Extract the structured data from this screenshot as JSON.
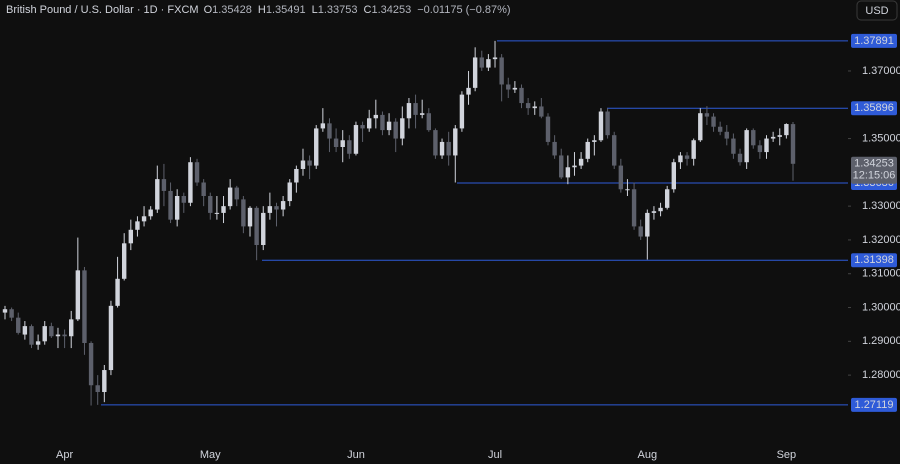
{
  "chart_data": {
    "type": "candlestick",
    "title": "British Pound / U.S. Dollar · 1D · FXCM",
    "legend": [
      {
        "key": "O",
        "value": "1.35428"
      },
      {
        "key": "H",
        "value": "1.35491"
      },
      {
        "key": "L",
        "value": "1.33753"
      },
      {
        "key": "C",
        "value": "1.34253"
      }
    ],
    "change": "−0.01175 (−0.87%)",
    "currency": "USD",
    "categories": [
      null,
      null,
      null,
      null,
      null,
      null,
      null,
      null,
      null,
      "Apr",
      null,
      null,
      null,
      null,
      null,
      null,
      null,
      null,
      null,
      null,
      null,
      null,
      null,
      null,
      null,
      null,
      null,
      null,
      null,
      null,
      null,
      "May",
      null,
      null,
      null,
      null,
      null,
      null,
      null,
      null,
      null,
      null,
      null,
      null,
      null,
      null,
      null,
      null,
      null,
      null,
      null,
      null,
      null,
      "Jun",
      null,
      null,
      null,
      null,
      null,
      null,
      null,
      null,
      null,
      null,
      null,
      null,
      null,
      null,
      null,
      null,
      null,
      null,
      null,
      null,
      "Jul",
      null,
      null,
      null,
      null,
      null,
      null,
      null,
      null,
      null,
      null,
      null,
      null,
      null,
      null,
      null,
      null,
      null,
      null,
      null,
      null,
      null,
      null,
      "Aug",
      null,
      null,
      null,
      null,
      null,
      null,
      null,
      null,
      null,
      null,
      null,
      null,
      null,
      null,
      null,
      null,
      null,
      null,
      null,
      null,
      "Sep",
      null
    ],
    "open": [
      1.2985,
      1.2995,
      1.297,
      1.292,
      1.2945,
      1.289,
      1.29,
      1.2945,
      1.2915,
      1.292,
      1.2915,
      1.2965,
      1.311,
      1.2895,
      1.277,
      1.275,
      1.2815,
      1.3005,
      1.3085,
      1.319,
      1.323,
      1.3255,
      1.327,
      1.329,
      1.338,
      1.3345,
      1.326,
      1.333,
      1.331,
      1.343,
      1.337,
      1.333,
      1.328,
      1.328,
      1.33,
      1.3355,
      1.332,
      1.324,
      1.3295,
      1.3185,
      1.328,
      1.33,
      1.329,
      1.3315,
      1.337,
      1.341,
      1.3435,
      1.342,
      1.353,
      1.3545,
      1.35,
      1.3475,
      1.3495,
      1.3455,
      1.354,
      1.353,
      1.356,
      1.357,
      1.3525,
      1.355,
      1.35,
      1.356,
      1.3605,
      1.357,
      1.3575,
      1.3525,
      1.345,
      1.349,
      1.345,
      1.353,
      1.363,
      1.365,
      1.374,
      1.371,
      1.3735,
      1.374,
      1.366,
      1.3645,
      1.365,
      1.3605,
      1.359,
      1.3595,
      1.3565,
      1.349,
      1.345,
      1.3385,
      1.3415,
      1.342,
      1.344,
      1.349,
      1.3495,
      1.358,
      1.351,
      1.342,
      1.335,
      1.335,
      1.324,
      1.321,
      1.328,
      1.3285,
      1.3295,
      1.335,
      1.343,
      1.345,
      1.344,
      1.3495,
      1.3575,
      1.3565,
      1.3535,
      1.352,
      1.35,
      1.3455,
      1.343,
      1.3525,
      1.348,
      1.346,
      1.35,
      1.3505,
      1.351,
      1.35428
    ],
    "high": [
      1.3005,
      1.3,
      1.2985,
      1.296,
      1.295,
      1.292,
      1.296,
      1.2955,
      1.294,
      1.2935,
      1.299,
      1.3207,
      1.312,
      1.29,
      1.28,
      1.283,
      1.302,
      1.315,
      1.322,
      1.326,
      1.327,
      1.33,
      1.33,
      1.342,
      1.3425,
      1.337,
      1.335,
      1.334,
      1.3445,
      1.344,
      1.338,
      1.334,
      1.333,
      1.333,
      1.338,
      1.336,
      1.333,
      1.33,
      1.33,
      1.33,
      1.334,
      1.331,
      1.333,
      1.338,
      1.342,
      1.347,
      1.345,
      1.354,
      1.359,
      1.356,
      1.353,
      1.3525,
      1.351,
      1.355,
      1.355,
      1.3585,
      1.3615,
      1.358,
      1.3575,
      1.356,
      1.3595,
      1.362,
      1.363,
      1.3615,
      1.359,
      1.353,
      1.35,
      1.352,
      1.354,
      1.364,
      1.37,
      1.377,
      1.376,
      1.375,
      1.3789,
      1.375,
      1.368,
      1.367,
      1.366,
      1.362,
      1.361,
      1.362,
      1.3575,
      1.351,
      1.347,
      1.345,
      1.346,
      1.346,
      1.35,
      1.351,
      1.359,
      1.359,
      1.352,
      1.344,
      1.338,
      1.337,
      1.326,
      1.329,
      1.33,
      1.331,
      1.336,
      1.344,
      1.346,
      1.346,
      1.35,
      1.359,
      1.3596,
      1.3575,
      1.355,
      1.354,
      1.3515,
      1.347,
      1.353,
      1.353,
      1.3495,
      1.351,
      1.352,
      1.353,
      1.3545,
      1.35491
    ],
    "low": [
      1.2965,
      1.296,
      1.292,
      1.2905,
      1.288,
      1.2875,
      1.289,
      1.291,
      1.288,
      1.288,
      1.288,
      1.296,
      1.286,
      1.271,
      1.2712,
      1.272,
      1.28,
      1.3,
      1.308,
      1.317,
      1.321,
      1.324,
      1.326,
      1.328,
      1.33,
      1.325,
      1.324,
      1.328,
      1.33,
      1.336,
      1.33,
      1.326,
      1.326,
      1.325,
      1.329,
      1.33,
      1.322,
      1.321,
      1.314,
      1.317,
      1.326,
      1.324,
      1.327,
      1.33,
      1.334,
      1.339,
      1.338,
      1.341,
      1.352,
      1.346,
      1.346,
      1.343,
      1.344,
      1.345,
      1.349,
      1.352,
      1.353,
      1.351,
      1.351,
      1.346,
      1.348,
      1.353,
      1.353,
      1.356,
      1.352,
      1.344,
      1.344,
      1.342,
      1.337,
      1.352,
      1.36,
      1.364,
      1.37,
      1.37,
      1.371,
      1.361,
      1.362,
      1.3635,
      1.359,
      1.357,
      1.357,
      1.356,
      1.348,
      1.344,
      1.338,
      1.3365,
      1.339,
      1.341,
      1.343,
      1.345,
      1.349,
      1.35,
      1.341,
      1.334,
      1.333,
      1.323,
      1.32,
      1.3142,
      1.326,
      1.327,
      1.329,
      1.334,
      1.341,
      1.342,
      1.342,
      1.349,
      1.354,
      1.352,
      1.351,
      1.348,
      1.344,
      1.342,
      1.341,
      1.347,
      1.344,
      1.344,
      1.349,
      1.348,
      1.35,
      1.33753
    ],
    "close": [
      1.2995,
      1.297,
      1.2925,
      1.2945,
      1.289,
      1.29,
      1.2945,
      1.2915,
      1.292,
      1.2915,
      1.2965,
      1.311,
      1.2895,
      1.277,
      1.275,
      1.2815,
      1.3005,
      1.3085,
      1.319,
      1.323,
      1.3255,
      1.327,
      1.329,
      1.338,
      1.3345,
      1.326,
      1.333,
      1.331,
      1.343,
      1.337,
      1.333,
      1.328,
      1.328,
      1.33,
      1.3355,
      1.332,
      1.324,
      1.3295,
      1.3185,
      1.328,
      1.33,
      1.329,
      1.3315,
      1.337,
      1.341,
      1.3435,
      1.342,
      1.353,
      1.3545,
      1.35,
      1.3475,
      1.3495,
      1.3455,
      1.354,
      1.353,
      1.356,
      1.357,
      1.3525,
      1.355,
      1.35,
      1.356,
      1.3605,
      1.357,
      1.3575,
      1.3525,
      1.345,
      1.349,
      1.345,
      1.353,
      1.363,
      1.365,
      1.374,
      1.371,
      1.3735,
      1.374,
      1.366,
      1.3645,
      1.365,
      1.3605,
      1.359,
      1.3595,
      1.3565,
      1.349,
      1.345,
      1.3385,
      1.3415,
      1.342,
      1.344,
      1.349,
      1.3495,
      1.358,
      1.351,
      1.342,
      1.335,
      1.335,
      1.324,
      1.321,
      1.328,
      1.3285,
      1.3295,
      1.335,
      1.343,
      1.345,
      1.344,
      1.3495,
      1.3575,
      1.3565,
      1.3535,
      1.352,
      1.35,
      1.3455,
      1.343,
      1.3525,
      1.348,
      1.346,
      1.35,
      1.3505,
      1.351,
      1.3543,
      1.34253
    ],
    "up_color": "#d1d4dc",
    "down_color": "#5d606b",
    "level_color": "#2f5bd8",
    "levels": [
      1.37891,
      1.35896,
      1.33686,
      1.31398,
      1.27119
    ],
    "last_price": 1.34253,
    "countdown": "12:15:06",
    "ylim": [
      1.2608,
      1.391
    ],
    "yticks": [
      {
        "value": 1.28,
        "label": "1.28000"
      },
      {
        "value": 1.29,
        "label": "1.29000"
      },
      {
        "value": 1.3,
        "label": "1.30000"
      },
      {
        "value": 1.31,
        "label": "1.31000"
      },
      {
        "value": 1.32,
        "label": "1.32000"
      },
      {
        "value": 1.33,
        "label": "1.33000"
      },
      {
        "value": 1.35,
        "label": "1.35000"
      },
      {
        "value": 1.37,
        "label": "1.37000"
      }
    ]
  }
}
